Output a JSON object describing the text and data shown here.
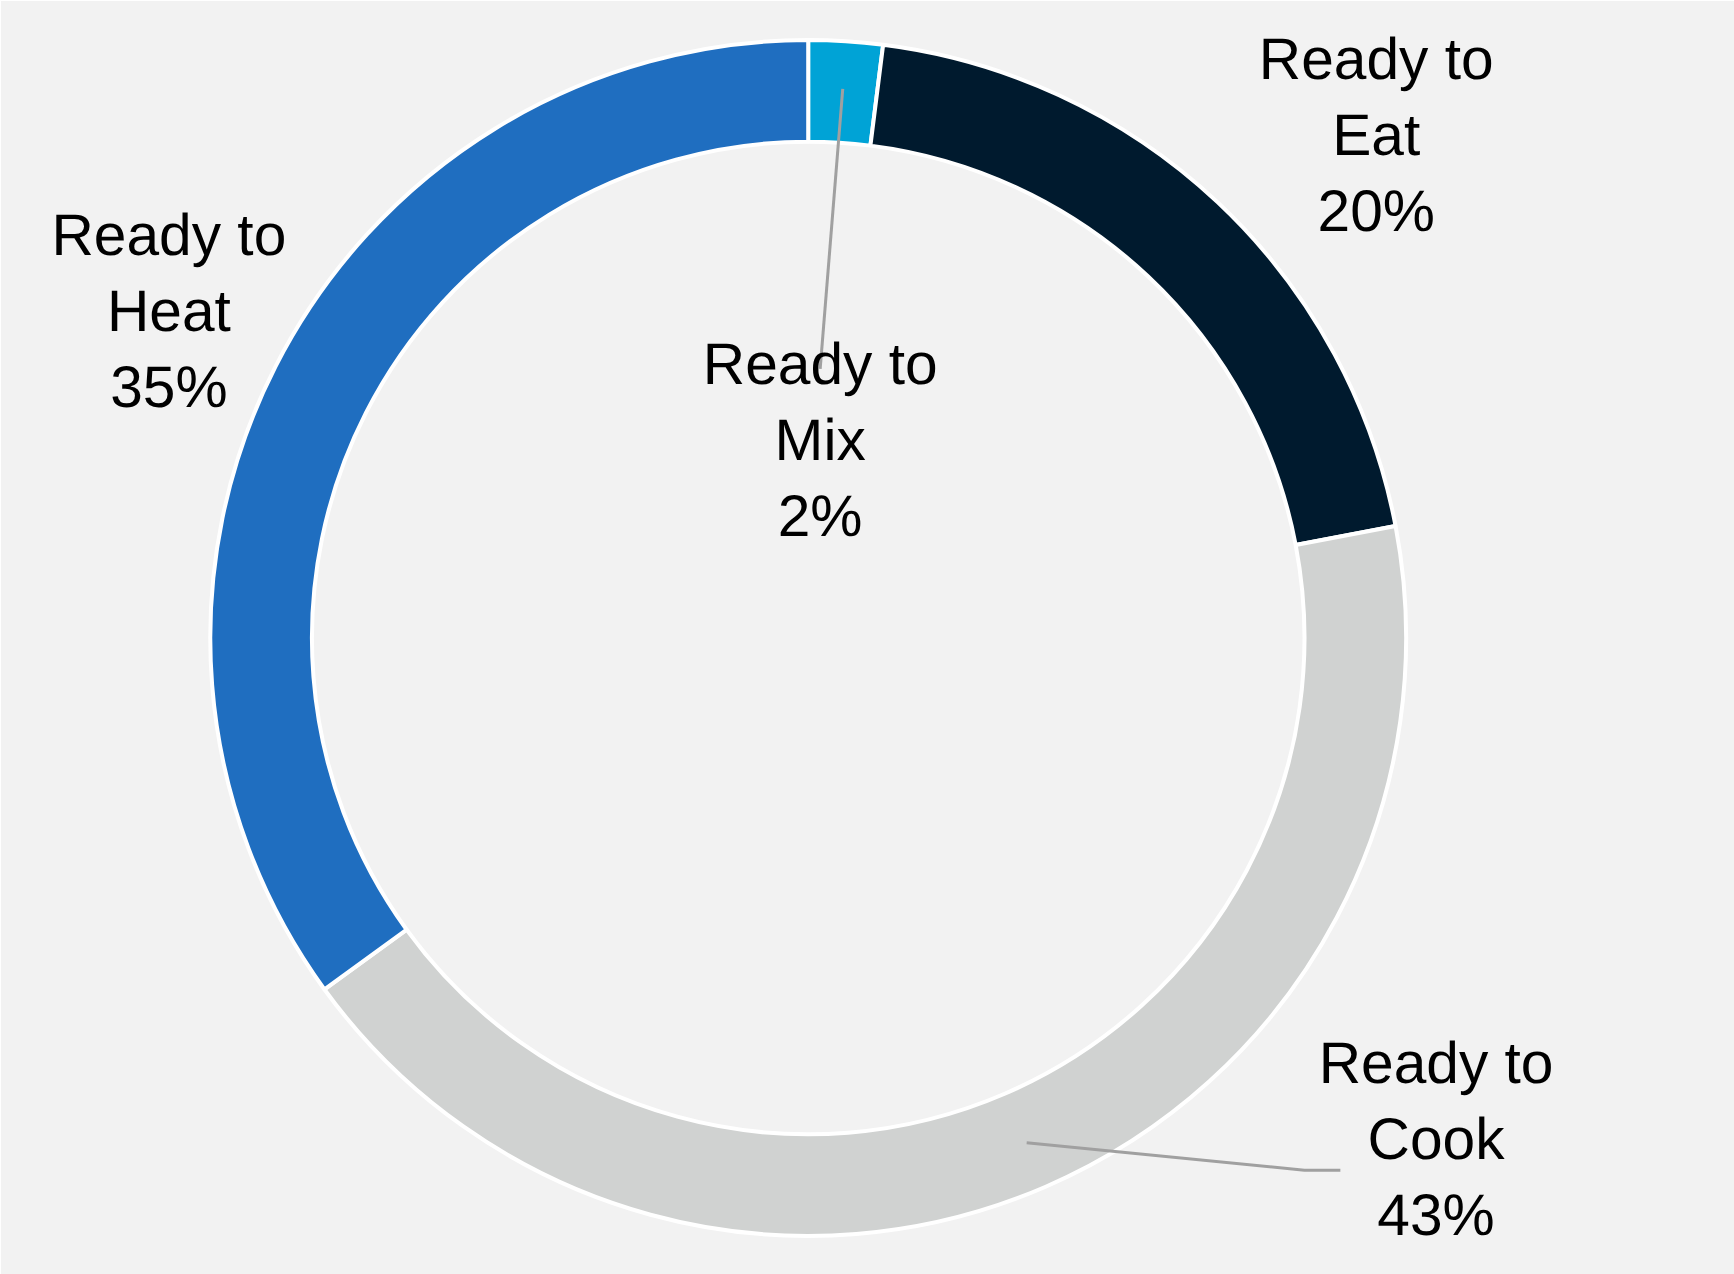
{
  "chart_data": {
    "type": "donut",
    "categories": [
      "Ready to Mix",
      "Ready to Eat",
      "Ready to Cook",
      "Ready to Heat"
    ],
    "values": [
      2,
      20,
      43,
      35
    ],
    "colors": [
      "#00a3d6",
      "#001a2e",
      "#d0d2d1",
      "#1f6ec0"
    ],
    "value_labels": [
      "2%",
      "20%",
      "43%",
      "35%"
    ]
  }
}
